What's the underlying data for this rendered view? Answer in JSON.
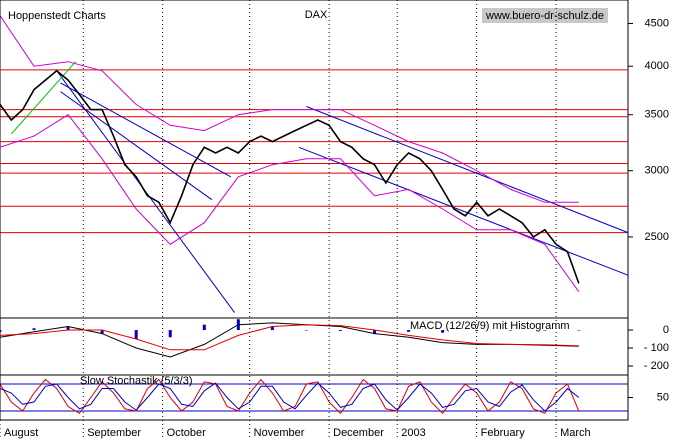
{
  "chart_data": [
    {
      "type": "line",
      "title": "DAX",
      "source": "Hoppenstedt Charts",
      "url": "www.buero-dr-schulz.de",
      "log": true,
      "xlim": [
        0,
        166
      ],
      "ylim": [
        2000,
        4800
      ],
      "yticks": [
        2500,
        3000,
        3500,
        4000,
        4500
      ],
      "x": [
        0,
        3,
        6,
        9,
        12,
        15,
        18,
        21,
        24,
        27,
        30,
        33,
        36,
        39,
        42,
        45,
        48,
        51,
        54,
        57,
        60,
        63,
        66,
        69,
        72,
        75,
        78,
        81,
        84,
        87,
        90,
        93,
        96,
        99,
        102,
        105,
        108,
        111,
        114,
        117,
        120,
        123,
        126,
        129,
        132,
        135,
        138,
        141,
        144,
        147,
        150,
        153
      ],
      "series": [
        {
          "color": "#000000",
          "values": [
            3600,
            3450,
            3550,
            3750,
            3850,
            3950,
            3850,
            3700,
            3550,
            3550,
            3300,
            3050,
            2950,
            2800,
            2750,
            2600,
            2800,
            3050,
            3200,
            3150,
            3200,
            3150,
            3250,
            3300,
            3250,
            3300,
            3350,
            3400,
            3450,
            3400,
            3250,
            3200,
            3100,
            3050,
            2900,
            3050,
            3150,
            3100,
            3000,
            2850,
            2700,
            2650,
            2750,
            2650,
            2700,
            2650,
            2600,
            2500,
            2550,
            2450,
            2400,
            2200
          ]
        },
        {
          "color": "#d000d0",
          "x": [
            0,
            9,
            18,
            27,
            36,
            45,
            54,
            63,
            72,
            81,
            90,
            99,
            108,
            117,
            126,
            135,
            144,
            153
          ],
          "values": [
            4600,
            4000,
            4050,
            3950,
            3600,
            3400,
            3350,
            3500,
            3550,
            3550,
            3550,
            3400,
            3250,
            3150,
            3000,
            2850,
            2750,
            2750
          ]
        },
        {
          "color": "#d000d0",
          "x": [
            0,
            9,
            18,
            27,
            36,
            45,
            54,
            63,
            72,
            81,
            90,
            99,
            108,
            117,
            126,
            135,
            144,
            153
          ],
          "values": [
            3200,
            3300,
            3500,
            3100,
            2700,
            2450,
            2600,
            2950,
            3050,
            3100,
            3100,
            2800,
            2850,
            2700,
            2550,
            2550,
            2450,
            2150
          ]
        }
      ],
      "levels": [
        3960,
        3550,
        3480,
        3250,
        3060,
        2980,
        2720,
        2530
      ],
      "level_color": "#e00000",
      "trendlines": [
        {
          "color": "#0000cc",
          "x": [
            15,
            62
          ],
          "y": [
            3950,
            2030
          ]
        },
        {
          "color": "#0000cc",
          "x": [
            16,
            61
          ],
          "y": [
            3820,
            2950
          ]
        },
        {
          "color": "#0000cc",
          "x": [
            16,
            56
          ],
          "y": [
            3730,
            2770
          ]
        },
        {
          "color": "#0000cc",
          "x": [
            81,
            166
          ],
          "y": [
            3580,
            2530
          ]
        },
        {
          "color": "#0000cc",
          "x": [
            79,
            166
          ],
          "y": [
            3200,
            2250
          ]
        },
        {
          "color": "#00c000",
          "x": [
            3,
            20
          ],
          "y": [
            3320,
            4050
          ]
        }
      ]
    },
    {
      "type": "line",
      "title": "MACD (12/26/9) mit Histogramm",
      "xlim": [
        0,
        166
      ],
      "ylim": [
        -250,
        67
      ],
      "yticks": [
        0,
        {
          "value": -100,
          "label": "- 100"
        },
        {
          "value": -200,
          "label": "- 200"
        }
      ],
      "x": [
        0,
        9,
        18,
        27,
        36,
        45,
        54,
        63,
        72,
        81,
        90,
        99,
        108,
        117,
        126,
        135,
        144,
        153
      ],
      "series": [
        {
          "color": "#000000",
          "values": [
            -40,
            -10,
            20,
            -20,
            -100,
            -150,
            -80,
            30,
            40,
            30,
            20,
            -20,
            -40,
            -70,
            -80,
            -80,
            -85,
            -90
          ]
        },
        {
          "color": "#e00000",
          "values": [
            -30,
            -20,
            0,
            0,
            -50,
            -110,
            -110,
            -30,
            20,
            30,
            25,
            0,
            -30,
            -55,
            -75,
            -80,
            -82,
            -88
          ]
        }
      ],
      "histogram": {
        "color": "#0000cc",
        "values": [
          -10,
          10,
          20,
          -20,
          -50,
          -40,
          30,
          60,
          20,
          0,
          -5,
          -20,
          -10,
          -15,
          -5,
          0,
          -3,
          -2
        ]
      }
    },
    {
      "type": "line",
      "title": "Slow Stochastik (5/3/3)",
      "xlim": [
        0,
        166
      ],
      "ylim": [
        0,
        100
      ],
      "yticks": [
        50
      ],
      "levels": [
        80,
        20
      ],
      "level_color": "#0000cc",
      "xticks": [
        {
          "value": 0,
          "label": "August"
        },
        {
          "value": 22,
          "label": "September"
        },
        {
          "value": 43,
          "label": "October"
        },
        {
          "value": 66,
          "label": "November"
        },
        {
          "value": 87,
          "label": "December"
        },
        {
          "value": 105,
          "label": "2003"
        },
        {
          "value": 126,
          "label": "February"
        },
        {
          "value": 147,
          "label": "March"
        }
      ],
      "x": [
        0,
        3,
        6,
        9,
        12,
        15,
        18,
        21,
        24,
        27,
        30,
        33,
        36,
        39,
        42,
        45,
        48,
        51,
        54,
        57,
        60,
        63,
        66,
        69,
        72,
        75,
        78,
        81,
        84,
        87,
        90,
        93,
        96,
        99,
        102,
        105,
        108,
        111,
        114,
        117,
        120,
        123,
        126,
        129,
        132,
        135,
        138,
        141,
        144,
        147,
        150,
        153
      ],
      "series": [
        {
          "color": "#e00000",
          "values": [
            80,
            40,
            20,
            60,
            90,
            70,
            30,
            15,
            50,
            85,
            60,
            25,
            20,
            70,
            90,
            50,
            20,
            40,
            85,
            80,
            30,
            20,
            60,
            90,
            60,
            20,
            30,
            80,
            85,
            40,
            15,
            50,
            90,
            70,
            25,
            20,
            75,
            85,
            40,
            15,
            50,
            80,
            60,
            20,
            40,
            85,
            70,
            25,
            15,
            60,
            80,
            20
          ]
        },
        {
          "color": "#0000cc",
          "values": [
            70,
            60,
            35,
            40,
            75,
            80,
            50,
            25,
            35,
            70,
            70,
            40,
            22,
            50,
            80,
            70,
            35,
            30,
            65,
            82,
            50,
            25,
            40,
            75,
            75,
            40,
            25,
            55,
            82,
            60,
            28,
            35,
            70,
            80,
            45,
            22,
            50,
            80,
            60,
            28,
            35,
            65,
            70,
            40,
            30,
            62,
            78,
            45,
            20,
            40,
            70,
            50
          ]
        }
      ]
    }
  ]
}
